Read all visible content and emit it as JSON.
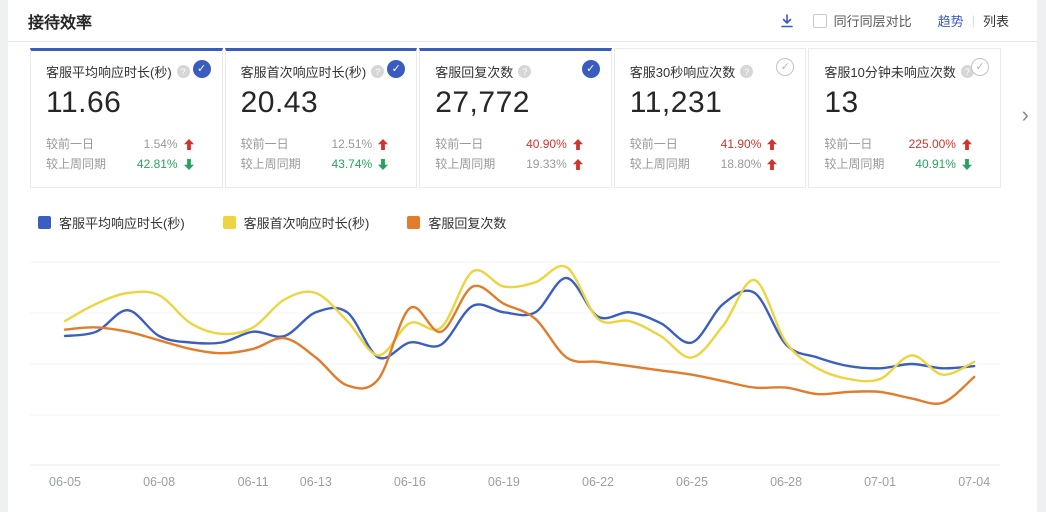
{
  "header": {
    "title": "接待效率",
    "compare_label": "同行同层对比",
    "tab_trend": "趋势",
    "tab_divider": "|",
    "tab_list": "列表"
  },
  "cards": [
    {
      "title": "客服平均响应时长(秒)",
      "value": "11.66",
      "selected": true,
      "rows": [
        {
          "label": "较前一日",
          "value": "1.54%",
          "value_color": "gray",
          "arrow": "up",
          "arrow_color": "red"
        },
        {
          "label": "较上周同期",
          "value": "42.81%",
          "value_color": "green",
          "arrow": "down",
          "arrow_color": "green"
        }
      ]
    },
    {
      "title": "客服首次响应时长(秒)",
      "value": "20.43",
      "selected": true,
      "rows": [
        {
          "label": "较前一日",
          "value": "12.51%",
          "value_color": "gray",
          "arrow": "up",
          "arrow_color": "red"
        },
        {
          "label": "较上周同期",
          "value": "43.74%",
          "value_color": "green",
          "arrow": "down",
          "arrow_color": "green"
        }
      ]
    },
    {
      "title": "客服回复次数",
      "value": "27,772",
      "selected": true,
      "rows": [
        {
          "label": "较前一日",
          "value": "40.90%",
          "value_color": "red",
          "arrow": "up",
          "arrow_color": "red"
        },
        {
          "label": "较上周同期",
          "value": "19.33%",
          "value_color": "gray",
          "arrow": "up",
          "arrow_color": "red"
        }
      ]
    },
    {
      "title": "客服30秒响应次数",
      "value": "11,231",
      "selected": false,
      "rows": [
        {
          "label": "较前一日",
          "value": "41.90%",
          "value_color": "red",
          "arrow": "up",
          "arrow_color": "red"
        },
        {
          "label": "较上周同期",
          "value": "18.80%",
          "value_color": "gray",
          "arrow": "up",
          "arrow_color": "red"
        }
      ]
    },
    {
      "title": "客服10分钟未响应次数",
      "value": "13",
      "selected": false,
      "rows": [
        {
          "label": "较前一日",
          "value": "225.00%",
          "value_color": "red",
          "arrow": "up",
          "arrow_color": "red"
        },
        {
          "label": "较上周同期",
          "value": "40.91%",
          "value_color": "green",
          "arrow": "down",
          "arrow_color": "green"
        }
      ]
    }
  ],
  "chart_data": {
    "type": "line",
    "x": [
      "06-05",
      "06-06",
      "06-07",
      "06-08",
      "06-09",
      "06-10",
      "06-11",
      "06-12",
      "06-13",
      "06-14",
      "06-15",
      "06-16",
      "06-17",
      "06-18",
      "06-19",
      "06-20",
      "06-21",
      "06-22",
      "06-23",
      "06-24",
      "06-25",
      "06-26",
      "06-27",
      "06-28",
      "06-29",
      "06-30",
      "07-01",
      "07-02",
      "07-03",
      "07-04"
    ],
    "tick_indices": [
      0,
      3,
      6,
      8,
      11,
      14,
      17,
      20,
      23,
      26,
      29
    ],
    "tick_labels": [
      "06-05",
      "06-08",
      "06-11",
      "06-13",
      "06-16",
      "06-19",
      "06-22",
      "06-25",
      "06-28",
      "07-01",
      "07-04"
    ],
    "xlabel": "",
    "ylabel": "",
    "y_axis_visible": false,
    "value_scale": "relative height 0-100 (source chart has no visible y-axis labels)",
    "ylim": [
      0,
      100
    ],
    "grid": "horizontal",
    "legend_position": "top-left",
    "series": [
      {
        "name": "客服平均响应时长(秒)",
        "color_key": "blue",
        "values": [
          60,
          62,
          72,
          60,
          57,
          57,
          62,
          60,
          71,
          71,
          50,
          57,
          56,
          74,
          71,
          71,
          87,
          69,
          71,
          66,
          57,
          75,
          80,
          56,
          50,
          46,
          45,
          47,
          45,
          46
        ]
      },
      {
        "name": "客服首次响应时长(秒)",
        "color_key": "yellow",
        "values": [
          67,
          75,
          80,
          79,
          66,
          61,
          64,
          77,
          80,
          67,
          51,
          66,
          64,
          90,
          83,
          85,
          92,
          68,
          67,
          60,
          50,
          65,
          86,
          57,
          45,
          40,
          40,
          51,
          42,
          48
        ]
      },
      {
        "name": "客服回复次数",
        "color_key": "orange",
        "values": [
          63,
          64,
          62,
          58,
          54,
          52,
          54,
          59,
          50,
          37,
          40,
          73,
          62,
          83,
          75,
          68,
          50,
          48,
          46,
          44,
          42,
          39,
          36,
          36,
          33,
          34,
          34,
          31,
          29,
          41
        ]
      }
    ]
  },
  "colors": {
    "accent": "#3a5bc0",
    "blue": "#3b5fc0",
    "yellow": "#ecd53e",
    "orange": "#e07c2c",
    "red": "#d0342c",
    "green": "#27a35f",
    "gray_text": "#999999",
    "dark_text": "#333333"
  }
}
